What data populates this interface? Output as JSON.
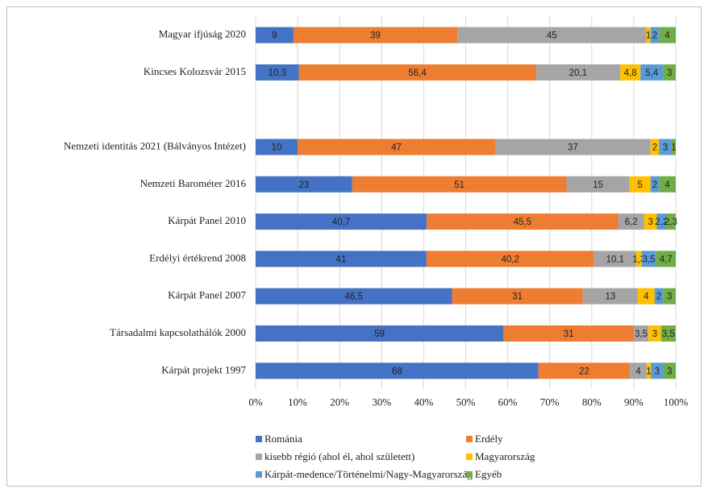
{
  "chart_data": {
    "type": "stacked-bar-horizontal-100",
    "categories": [
      "Magyar ifjúság 2020",
      "Kincses Kolozsvár 2015",
      null,
      "Nemzeti identitás 2021 (Bálványos Intézet)",
      "Nemzeti Barométer 2016",
      "Kárpát Panel 2010",
      "Erdélyi értékrend 2008",
      "Kárpát Panel 2007",
      "Társadalmi kapcsolathálók 2000",
      "Kárpát projekt 1997"
    ],
    "series": [
      {
        "name": "Románia",
        "color": "#4472c4",
        "values": [
          9,
          10.3,
          null,
          10,
          23,
          40.7,
          41,
          46.5,
          59,
          68
        ],
        "value_labels": [
          "9",
          "10,3",
          null,
          "10",
          "23",
          "40,7",
          "41",
          "46,5",
          "59",
          "68"
        ]
      },
      {
        "name": "Erdély",
        "color": "#ed7d31",
        "values": [
          39,
          56.4,
          null,
          47,
          51,
          45.5,
          40.2,
          31,
          31,
          22
        ],
        "value_labels": [
          "39",
          "56,4",
          null,
          "47",
          "51",
          "45,5",
          "40,2",
          "31",
          "31",
          "22"
        ]
      },
      {
        "name": "kisebb régió (ahol él, ahol született)",
        "color": "#a5a5a5",
        "values": [
          45,
          20.1,
          null,
          37,
          15,
          6.2,
          10.1,
          13,
          3.5,
          4
        ],
        "value_labels": [
          "45",
          "20,1",
          null,
          "37",
          "15",
          "6,2",
          "10,1",
          "13",
          "3,5",
          "4"
        ]
      },
      {
        "name": "Magyarország",
        "color": "#ffc000",
        "values": [
          1,
          4.8,
          null,
          2,
          5,
          3,
          1.3,
          4,
          3,
          1
        ],
        "value_labels": [
          "1",
          "4,8",
          null,
          "2",
          "5",
          "3",
          "1,3",
          "4",
          "3",
          "1"
        ]
      },
      {
        "name": "Kárpát-medence/Történelmi/Nagy-Magyarország",
        "color": "#5b9bd5",
        "values": [
          2,
          5.4,
          null,
          3,
          2,
          2.2,
          3.5,
          2,
          null,
          3
        ],
        "value_labels": [
          "2",
          "5,4",
          null,
          "3",
          "2",
          "2,2",
          "3,5",
          "2",
          null,
          "3"
        ]
      },
      {
        "name": "Egyéb",
        "color": "#70ad47",
        "values": [
          4,
          3,
          null,
          1,
          4,
          2.3,
          4.7,
          3,
          3.5,
          3
        ],
        "value_labels": [
          "4",
          "3",
          null,
          "1",
          "4",
          "2,3",
          "4,7",
          "3",
          "3,5",
          "3"
        ]
      }
    ],
    "xlim": [
      0,
      100
    ],
    "xticks": [
      {
        "value": 0,
        "label": "0%"
      },
      {
        "value": 10,
        "label": "10%"
      },
      {
        "value": 20,
        "label": "20%"
      },
      {
        "value": 30,
        "label": "30%"
      },
      {
        "value": 40,
        "label": "40%"
      },
      {
        "value": 50,
        "label": "50%"
      },
      {
        "value": 60,
        "label": "60%"
      },
      {
        "value": 70,
        "label": "70%"
      },
      {
        "value": 80,
        "label": "80%"
      },
      {
        "value": 90,
        "label": "90%"
      },
      {
        "value": 100,
        "label": "100%"
      }
    ],
    "grid": true,
    "legend": "bottom"
  }
}
